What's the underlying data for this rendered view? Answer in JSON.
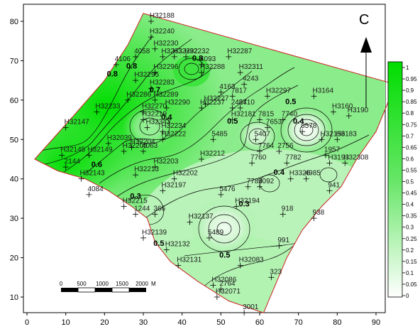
{
  "panel_label": "C",
  "scale_bar": {
    "labels": [
      "0",
      "500",
      "1000",
      "1500",
      "2000"
    ],
    "unit": "M"
  },
  "colors": {
    "high": "#00dd00",
    "low": "#ffffff",
    "contour": "#000000",
    "boundary": "#cc2222"
  },
  "chart_data": {
    "type": "contour-map",
    "xlim": [
      0,
      95
    ],
    "ylim": [
      5,
      85
    ],
    "x_ticks": [
      "0",
      "10",
      "20",
      "30",
      "40",
      "50",
      "60",
      "70",
      "80",
      "90"
    ],
    "y_ticks": [
      "10",
      "20",
      "30",
      "40",
      "50",
      "60",
      "70",
      "80"
    ],
    "colorbar": {
      "range": [
        0,
        1
      ],
      "levels": [
        "1",
        "0.95",
        "0.9",
        "0.85",
        "0.8",
        "0.75",
        "0.7",
        "0.65",
        "0.6",
        "0.55",
        "0.5",
        "0.45",
        "0.4",
        "0.35",
        "0.3",
        "0.25",
        "0.2",
        "0.15",
        "0.1",
        "0.05",
        "0"
      ]
    },
    "boundary": [
      [
        30,
        82
      ],
      [
        95,
        64
      ],
      [
        90,
        52
      ],
      [
        85,
        45
      ],
      [
        81,
        38
      ],
      [
        76,
        33
      ],
      [
        71,
        27
      ],
      [
        67,
        20
      ],
      [
        64,
        13
      ],
      [
        61,
        6
      ],
      [
        52,
        9
      ],
      [
        44,
        14
      ],
      [
        37,
        19
      ],
      [
        33,
        24
      ],
      [
        31,
        30
      ],
      [
        27,
        33
      ],
      [
        21,
        37
      ],
      [
        15,
        40
      ],
      [
        8,
        42
      ],
      [
        2,
        45
      ],
      [
        12,
        56
      ],
      [
        20,
        65
      ],
      [
        26,
        74
      ]
    ],
    "contour_labels": [
      {
        "x": 27,
        "y": 68,
        "text": "0.8"
      },
      {
        "x": 33,
        "y": 62,
        "text": "0.7"
      },
      {
        "x": 36,
        "y": 55,
        "text": "0.4"
      },
      {
        "x": 44,
        "y": 70,
        "text": "0.8"
      },
      {
        "x": 53,
        "y": 54,
        "text": "0.5"
      },
      {
        "x": 68,
        "y": 59,
        "text": "0.5"
      },
      {
        "x": 70,
        "y": 54,
        "text": "0.4"
      },
      {
        "x": 65,
        "y": 41,
        "text": "0.4"
      },
      {
        "x": 56,
        "y": 33,
        "text": "0.3"
      },
      {
        "x": 28,
        "y": 35,
        "text": "0.3"
      },
      {
        "x": 34,
        "y": 23,
        "text": "0.5"
      },
      {
        "x": 51,
        "y": 20,
        "text": "0.5"
      },
      {
        "x": 18,
        "y": 43,
        "text": "0.6"
      },
      {
        "x": 22,
        "y": 66,
        "text": "0.8"
      }
    ],
    "stations": [
      {
        "x": 32,
        "y": 80,
        "name": "H32188"
      },
      {
        "x": 32,
        "y": 76,
        "name": "H32240"
      },
      {
        "x": 33,
        "y": 73,
        "name": "H32230"
      },
      {
        "x": 28,
        "y": 71,
        "name": "4058"
      },
      {
        "x": 35,
        "y": 71,
        "name": "H3263"
      },
      {
        "x": 38,
        "y": 71,
        "name": "H32292"
      },
      {
        "x": 41,
        "y": 71,
        "name": "H32232"
      },
      {
        "x": 45,
        "y": 69,
        "name": "4093"
      },
      {
        "x": 52,
        "y": 71,
        "name": "H32287"
      },
      {
        "x": 45,
        "y": 67,
        "name": "H32288"
      },
      {
        "x": 55,
        "y": 67,
        "name": "H32311"
      },
      {
        "x": 56,
        "y": 64,
        "name": "4243"
      },
      {
        "x": 23,
        "y": 69,
        "name": "4106"
      },
      {
        "x": 28,
        "y": 65,
        "name": "H32295"
      },
      {
        "x": 33,
        "y": 67,
        "name": "H32296"
      },
      {
        "x": 32,
        "y": 63,
        "name": "H32283"
      },
      {
        "x": 26,
        "y": 60,
        "name": "H32286"
      },
      {
        "x": 33,
        "y": 60,
        "name": "H32289"
      },
      {
        "x": 36,
        "y": 58,
        "name": "H32290"
      },
      {
        "x": 45,
        "y": 58,
        "name": "H32237"
      },
      {
        "x": 46,
        "y": 59,
        "name": "H32227"
      },
      {
        "x": 53,
        "y": 61,
        "name": "7817"
      },
      {
        "x": 50,
        "y": 62,
        "name": "4163"
      },
      {
        "x": 18,
        "y": 57,
        "name": "H32233"
      },
      {
        "x": 30,
        "y": 57,
        "name": "H32270"
      },
      {
        "x": 30,
        "y": 55,
        "name": "H32219"
      },
      {
        "x": 31,
        "y": 53,
        "name": "H32343"
      },
      {
        "x": 35,
        "y": 52,
        "name": "H32234"
      },
      {
        "x": 35,
        "y": 50,
        "name": "H32222"
      },
      {
        "x": 27,
        "y": 48,
        "name": "H32204"
      },
      {
        "x": 21,
        "y": 49,
        "name": "H32039"
      },
      {
        "x": 30,
        "y": 47,
        "name": "4063"
      },
      {
        "x": 25,
        "y": 47,
        "name": "H32205"
      },
      {
        "x": 10,
        "y": 53,
        "name": "H32147"
      },
      {
        "x": 9,
        "y": 46,
        "name": "H32145"
      },
      {
        "x": 16,
        "y": 46,
        "name": "H32149"
      },
      {
        "x": 10,
        "y": 43,
        "name": "2144"
      },
      {
        "x": 14,
        "y": 40,
        "name": "H32143"
      },
      {
        "x": 16,
        "y": 36,
        "name": "4084"
      },
      {
        "x": 28,
        "y": 41,
        "name": "H32213"
      },
      {
        "x": 33,
        "y": 43,
        "name": "H32203"
      },
      {
        "x": 38,
        "y": 40,
        "name": "H32202"
      },
      {
        "x": 35,
        "y": 37,
        "name": "H32197"
      },
      {
        "x": 45,
        "y": 45,
        "name": "H32212"
      },
      {
        "x": 48,
        "y": 50,
        "name": "5485"
      },
      {
        "x": 53,
        "y": 55,
        "name": "H32181"
      },
      {
        "x": 55,
        "y": 58,
        "name": "8410"
      },
      {
        "x": 53,
        "y": 58,
        "name": "2427"
      },
      {
        "x": 25,
        "y": 33,
        "name": "H32215"
      },
      {
        "x": 28,
        "y": 31,
        "name": "1244"
      },
      {
        "x": 33,
        "y": 31,
        "name": "366"
      },
      {
        "x": 30,
        "y": 25,
        "name": "H32139"
      },
      {
        "x": 36,
        "y": 22,
        "name": "H32132"
      },
      {
        "x": 42,
        "y": 29,
        "name": "H32137"
      },
      {
        "x": 39,
        "y": 18,
        "name": "H32131"
      },
      {
        "x": 47,
        "y": 25,
        "name": "5489"
      },
      {
        "x": 50,
        "y": 36,
        "name": "5476"
      },
      {
        "x": 54,
        "y": 33,
        "name": "H32194"
      },
      {
        "x": 57,
        "y": 38,
        "name": "7783"
      },
      {
        "x": 60,
        "y": 38,
        "name": "9092"
      },
      {
        "x": 55,
        "y": 18,
        "name": "H32083"
      },
      {
        "x": 66,
        "y": 31,
        "name": "918"
      },
      {
        "x": 65,
        "y": 23,
        "name": "991"
      },
      {
        "x": 74,
        "y": 30,
        "name": "938"
      },
      {
        "x": 63,
        "y": 15,
        "name": "323"
      },
      {
        "x": 48,
        "y": 13,
        "name": "H32086"
      },
      {
        "x": 50,
        "y": 12,
        "name": "2764"
      },
      {
        "x": 49,
        "y": 10,
        "name": "H32071"
      },
      {
        "x": 56,
        "y": 6,
        "name": "3001"
      },
      {
        "x": 62,
        "y": 61,
        "name": "H32297"
      },
      {
        "x": 66,
        "y": 55,
        "name": "7740"
      },
      {
        "x": 60,
        "y": 55,
        "name": "7815"
      },
      {
        "x": 62,
        "y": 53,
        "name": "7653"
      },
      {
        "x": 59,
        "y": 50,
        "name": "5407"
      },
      {
        "x": 60,
        "y": 47,
        "name": "7764"
      },
      {
        "x": 65,
        "y": 47,
        "name": "2756"
      },
      {
        "x": 58,
        "y": 44,
        "name": "7760"
      },
      {
        "x": 67,
        "y": 44,
        "name": "7782"
      },
      {
        "x": 68,
        "y": 40,
        "name": "H3326"
      },
      {
        "x": 72,
        "y": 40,
        "name": "4985"
      },
      {
        "x": 78,
        "y": 37,
        "name": "941"
      },
      {
        "x": 74,
        "y": 61,
        "name": "H3164"
      },
      {
        "x": 79,
        "y": 57,
        "name": "H3160"
      },
      {
        "x": 71,
        "y": 52,
        "name": "8578"
      },
      {
        "x": 76,
        "y": 50,
        "name": "H32156"
      },
      {
        "x": 83,
        "y": 56,
        "name": "H3190"
      },
      {
        "x": 80,
        "y": 50,
        "name": "H3183"
      },
      {
        "x": 78,
        "y": 44,
        "name": "H3193"
      },
      {
        "x": 82,
        "y": 44,
        "name": "H32308"
      },
      {
        "x": 77,
        "y": 46,
        "name": "1957"
      }
    ]
  }
}
